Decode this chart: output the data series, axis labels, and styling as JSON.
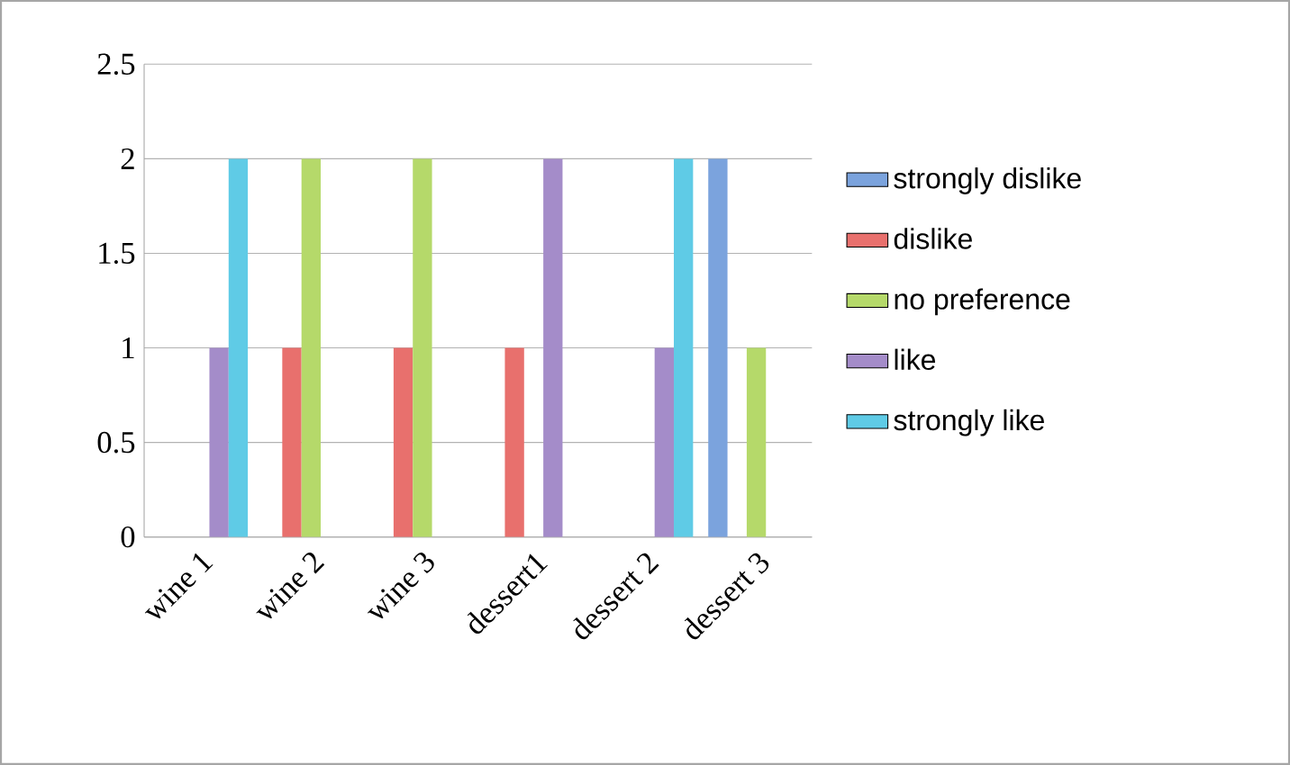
{
  "chart_data": {
    "type": "bar",
    "categories": [
      "wine 1",
      "wine 2",
      "wine 3",
      "dessert1",
      "dessert 2",
      "dessert 3"
    ],
    "series": [
      {
        "name": "strongly dislike",
        "color": "#7ba3dd",
        "values": [
          0,
          0,
          0,
          0,
          0,
          2
        ]
      },
      {
        "name": "dislike",
        "color": "#e8706d",
        "values": [
          0,
          1,
          1,
          1,
          0,
          0
        ]
      },
      {
        "name": "no preference",
        "color": "#b5d96a",
        "values": [
          0,
          2,
          2,
          0,
          0,
          1
        ]
      },
      {
        "name": "like",
        "color": "#a48cc9",
        "values": [
          1,
          0,
          0,
          2,
          1,
          0
        ]
      },
      {
        "name": "strongly like",
        "color": "#5fcbe6",
        "values": [
          2,
          0,
          0,
          0,
          2,
          0
        ]
      }
    ],
    "ylim": [
      0,
      2.5
    ],
    "yticks": [
      0,
      0.5,
      1,
      1.5,
      2,
      2.5
    ],
    "grid": "y",
    "legend": "right"
  }
}
